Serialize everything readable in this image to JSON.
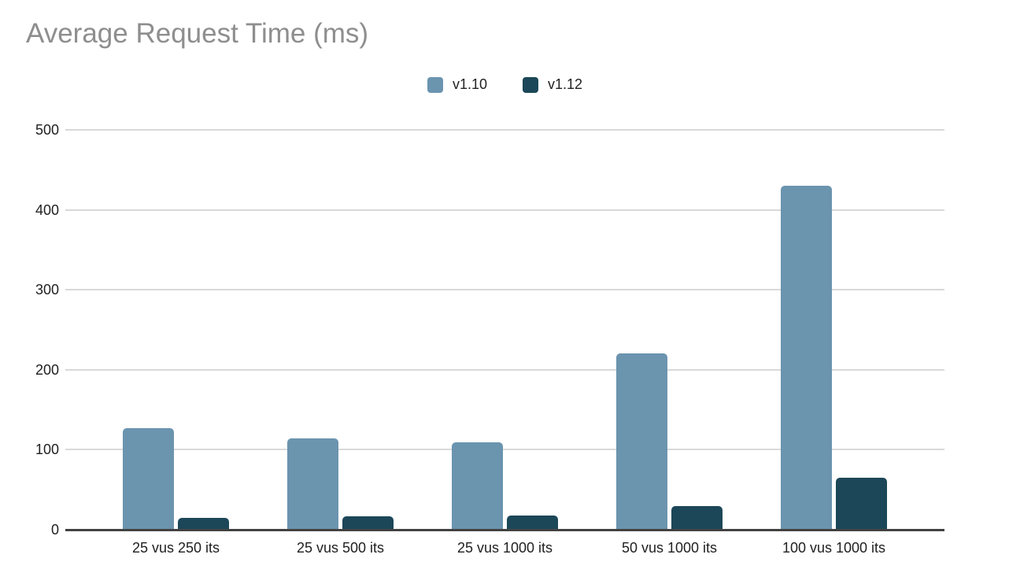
{
  "chart_data": {
    "type": "bar",
    "title": "Average Request Time (ms)",
    "categories": [
      "25 vus 250 its",
      "25 vus 500 its",
      "25 vus 1000 its",
      "50 vus 1000 its",
      "100 vus 1000 its"
    ],
    "series": [
      {
        "name": "v1.10",
        "color": "#6b94af",
        "values": [
          127,
          114,
          109,
          220,
          430
        ]
      },
      {
        "name": "v1.12",
        "color": "#1c4758",
        "values": [
          15,
          17,
          18,
          30,
          65
        ]
      }
    ],
    "xlabel": "",
    "ylabel": "",
    "ylim": [
      0,
      500
    ],
    "yticks": [
      0,
      100,
      200,
      300,
      400,
      500
    ],
    "grid": true,
    "legend_position": "top-center"
  },
  "styles": {
    "background": "#ffffff",
    "title_color": "#8e8e8e",
    "axis_label_color": "#1f1f1f",
    "legend_label_color": "#212121",
    "gridline_color": "#d9d9d9",
    "baseline_color": "#424242"
  }
}
